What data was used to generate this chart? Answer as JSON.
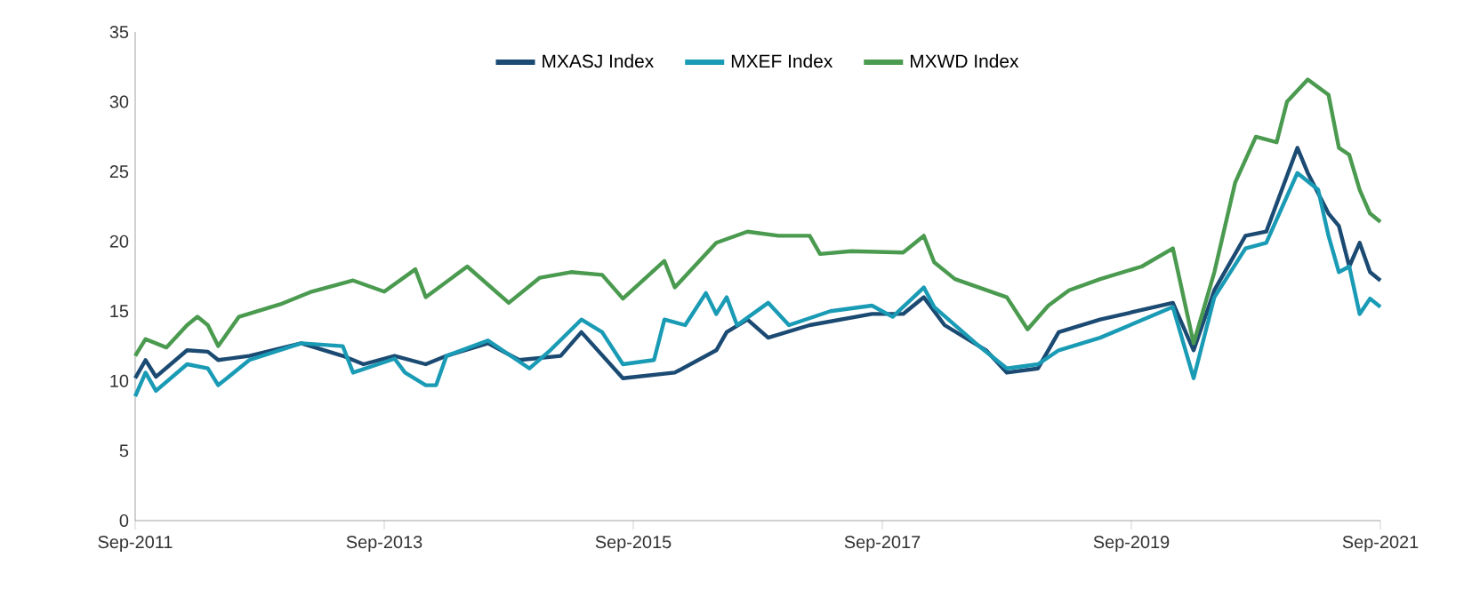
{
  "chart_data": {
    "type": "line",
    "xlim": [
      "2011-09",
      "2021-09"
    ],
    "xticks": [
      {
        "value": "2011-09",
        "label": "Sep-2011"
      },
      {
        "value": "2013-09",
        "label": "Sep-2013"
      },
      {
        "value": "2015-09",
        "label": "Sep-2015"
      },
      {
        "value": "2017-09",
        "label": "Sep-2017"
      },
      {
        "value": "2019-09",
        "label": "Sep-2019"
      },
      {
        "value": "2021-09",
        "label": "Sep-2021"
      }
    ],
    "ylim": [
      0,
      35
    ],
    "yticks": [
      0,
      5,
      10,
      15,
      20,
      25,
      30,
      35
    ],
    "grid": false,
    "legend": "top",
    "marker": "none",
    "line_style": "solid",
    "series": [
      {
        "name": "MXASJ Index",
        "color": "#1b4a72",
        "x": [
          "2011-09",
          "2011-10",
          "2011-11",
          "2012-02",
          "2012-04",
          "2012-05",
          "2012-08",
          "2013-01",
          "2013-05",
          "2013-07",
          "2013-10",
          "2014-01",
          "2014-03",
          "2014-07",
          "2014-10",
          "2015-02",
          "2015-04",
          "2015-08",
          "2016-01",
          "2016-05",
          "2016-06",
          "2016-08",
          "2016-10",
          "2017-02",
          "2017-08",
          "2017-11",
          "2018-01",
          "2018-03",
          "2018-07",
          "2018-09",
          "2018-12",
          "2019-02",
          "2019-06",
          "2020-01",
          "2020-03",
          "2020-05",
          "2020-08",
          "2020-10",
          "2021-01",
          "2021-02",
          "2021-04",
          "2021-05",
          "2021-06",
          "2021-07",
          "2021-08",
          "2021-09"
        ],
        "values": [
          10.2,
          11.5,
          10.3,
          12.2,
          12.1,
          11.5,
          11.8,
          12.7,
          11.8,
          11.2,
          11.8,
          11.2,
          11.8,
          12.7,
          11.5,
          11.8,
          13.5,
          10.2,
          10.6,
          12.2,
          13.5,
          14.4,
          13.1,
          14.0,
          14.8,
          14.8,
          16.0,
          14.0,
          12.2,
          10.6,
          10.9,
          13.5,
          14.4,
          15.6,
          12.2,
          16.5,
          20.4,
          20.7,
          26.7,
          24.9,
          22.0,
          21.1,
          18.2,
          19.9,
          17.8,
          17.2
        ]
      },
      {
        "name": "MXEF Index",
        "color": "#1a9bb5",
        "x": [
          "2011-09",
          "2011-10",
          "2011-11",
          "2012-02",
          "2012-04",
          "2012-05",
          "2012-08",
          "2013-01",
          "2013-05",
          "2013-06",
          "2013-10",
          "2013-11",
          "2014-01",
          "2014-02",
          "2014-03",
          "2014-07",
          "2014-11",
          "2015-01",
          "2015-04",
          "2015-06",
          "2015-08",
          "2015-11",
          "2015-12",
          "2016-02",
          "2016-04",
          "2016-05",
          "2016-06",
          "2016-07",
          "2016-10",
          "2016-12",
          "2017-04",
          "2017-08",
          "2017-10",
          "2018-01",
          "2018-02",
          "2018-06",
          "2018-09",
          "2018-12",
          "2019-02",
          "2019-06",
          "2020-01",
          "2020-03",
          "2020-05",
          "2020-08",
          "2020-10",
          "2021-01",
          "2021-03",
          "2021-04",
          "2021-05",
          "2021-06",
          "2021-07",
          "2021-08",
          "2021-09"
        ],
        "values": [
          8.9,
          10.6,
          9.3,
          11.2,
          10.9,
          9.7,
          11.5,
          12.7,
          12.5,
          10.6,
          11.6,
          10.6,
          9.7,
          9.7,
          11.8,
          12.9,
          10.9,
          12.2,
          14.4,
          13.5,
          11.2,
          11.5,
          14.4,
          14.0,
          16.3,
          14.8,
          16.0,
          14.0,
          15.6,
          14.0,
          15.0,
          15.4,
          14.6,
          16.7,
          15.3,
          12.7,
          10.9,
          11.2,
          12.2,
          13.1,
          15.3,
          10.2,
          16.0,
          19.5,
          19.9,
          24.9,
          23.7,
          20.4,
          17.8,
          18.2,
          14.8,
          15.9,
          15.3
        ]
      },
      {
        "name": "MXWD Index",
        "color": "#4a9a4f",
        "x": [
          "2011-09",
          "2011-10",
          "2011-12",
          "2012-02",
          "2012-03",
          "2012-04",
          "2012-05",
          "2012-07",
          "2012-11",
          "2013-02",
          "2013-06",
          "2013-09",
          "2013-12",
          "2014-01",
          "2014-05",
          "2014-09",
          "2014-12",
          "2015-03",
          "2015-06",
          "2015-08",
          "2015-12",
          "2016-01",
          "2016-05",
          "2016-08",
          "2016-11",
          "2017-02",
          "2017-03",
          "2017-06",
          "2017-11",
          "2018-01",
          "2018-02",
          "2018-04",
          "2018-09",
          "2018-11",
          "2019-01",
          "2019-03",
          "2019-06",
          "2019-10",
          "2020-01",
          "2020-03",
          "2020-05",
          "2020-07",
          "2020-09",
          "2020-11",
          "2020-12",
          "2021-02",
          "2021-04",
          "2021-05",
          "2021-06",
          "2021-07",
          "2021-08",
          "2021-09"
        ],
        "values": [
          11.8,
          13.0,
          12.4,
          14.0,
          14.6,
          14.0,
          12.5,
          14.6,
          15.5,
          16.4,
          17.2,
          16.4,
          18.0,
          16.0,
          18.2,
          15.6,
          17.4,
          17.8,
          17.6,
          15.9,
          18.6,
          16.7,
          19.9,
          20.7,
          20.4,
          20.4,
          19.1,
          19.3,
          19.2,
          20.4,
          18.5,
          17.3,
          16.0,
          13.7,
          15.4,
          16.5,
          17.3,
          18.2,
          19.5,
          12.7,
          17.8,
          24.2,
          27.5,
          27.1,
          30.0,
          31.6,
          30.5,
          26.7,
          26.2,
          23.7,
          22.0,
          21.4
        ]
      }
    ]
  }
}
